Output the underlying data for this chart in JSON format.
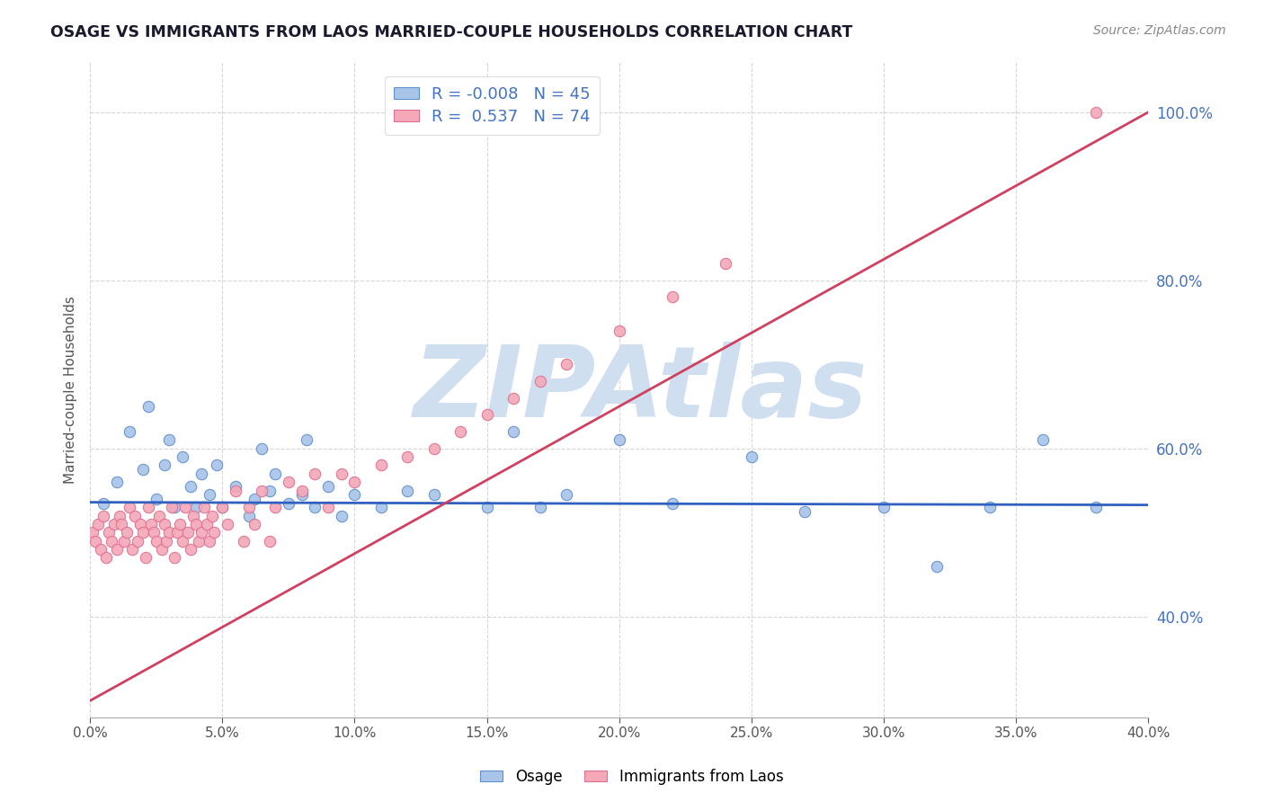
{
  "title": "OSAGE VS IMMIGRANTS FROM LAOS MARRIED-COUPLE HOUSEHOLDS CORRELATION CHART",
  "source": "Source: ZipAtlas.com",
  "ylabel": "Married-couple Households",
  "xlim": [
    0.0,
    0.4
  ],
  "ylim": [
    0.28,
    1.06
  ],
  "xticks": [
    0.0,
    0.05,
    0.1,
    0.15,
    0.2,
    0.25,
    0.3,
    0.35,
    0.4
  ],
  "yticks": [
    0.4,
    0.6,
    0.8,
    1.0
  ],
  "series1_name": "Osage",
  "series1_color": "#a8c4e8",
  "series1_edge": "#6090cc",
  "series1_R": -0.008,
  "series1_N": 45,
  "series2_name": "Immigrants from Laos",
  "series2_color": "#f4a8b8",
  "series2_edge": "#e07090",
  "series2_R": 0.537,
  "series2_N": 74,
  "series1_x": [
    0.005,
    0.01,
    0.015,
    0.02,
    0.022,
    0.025,
    0.028,
    0.03,
    0.032,
    0.035,
    0.038,
    0.04,
    0.042,
    0.045,
    0.048,
    0.05,
    0.055,
    0.06,
    0.062,
    0.065,
    0.068,
    0.07,
    0.075,
    0.08,
    0.082,
    0.085,
    0.09,
    0.095,
    0.1,
    0.11,
    0.12,
    0.13,
    0.15,
    0.16,
    0.17,
    0.18,
    0.2,
    0.22,
    0.25,
    0.27,
    0.3,
    0.32,
    0.34,
    0.36,
    0.38
  ],
  "series1_y": [
    0.535,
    0.56,
    0.62,
    0.575,
    0.65,
    0.54,
    0.58,
    0.61,
    0.53,
    0.59,
    0.555,
    0.53,
    0.57,
    0.545,
    0.58,
    0.53,
    0.555,
    0.52,
    0.54,
    0.6,
    0.55,
    0.57,
    0.535,
    0.545,
    0.61,
    0.53,
    0.555,
    0.52,
    0.545,
    0.53,
    0.55,
    0.545,
    0.53,
    0.62,
    0.53,
    0.545,
    0.61,
    0.535,
    0.59,
    0.525,
    0.53,
    0.46,
    0.53,
    0.61,
    0.53
  ],
  "series2_x": [
    0.001,
    0.002,
    0.003,
    0.004,
    0.005,
    0.006,
    0.007,
    0.008,
    0.009,
    0.01,
    0.011,
    0.012,
    0.013,
    0.014,
    0.015,
    0.016,
    0.017,
    0.018,
    0.019,
    0.02,
    0.021,
    0.022,
    0.023,
    0.024,
    0.025,
    0.026,
    0.027,
    0.028,
    0.029,
    0.03,
    0.031,
    0.032,
    0.033,
    0.034,
    0.035,
    0.036,
    0.037,
    0.038,
    0.039,
    0.04,
    0.041,
    0.042,
    0.043,
    0.044,
    0.045,
    0.046,
    0.047,
    0.05,
    0.052,
    0.055,
    0.058,
    0.06,
    0.062,
    0.065,
    0.068,
    0.07,
    0.075,
    0.08,
    0.085,
    0.09,
    0.095,
    0.1,
    0.11,
    0.12,
    0.13,
    0.14,
    0.15,
    0.16,
    0.17,
    0.18,
    0.2,
    0.22,
    0.24,
    0.38
  ],
  "series2_y": [
    0.5,
    0.49,
    0.51,
    0.48,
    0.52,
    0.47,
    0.5,
    0.49,
    0.51,
    0.48,
    0.52,
    0.51,
    0.49,
    0.5,
    0.53,
    0.48,
    0.52,
    0.49,
    0.51,
    0.5,
    0.47,
    0.53,
    0.51,
    0.5,
    0.49,
    0.52,
    0.48,
    0.51,
    0.49,
    0.5,
    0.53,
    0.47,
    0.5,
    0.51,
    0.49,
    0.53,
    0.5,
    0.48,
    0.52,
    0.51,
    0.49,
    0.5,
    0.53,
    0.51,
    0.49,
    0.52,
    0.5,
    0.53,
    0.51,
    0.55,
    0.49,
    0.53,
    0.51,
    0.55,
    0.49,
    0.53,
    0.56,
    0.55,
    0.57,
    0.53,
    0.57,
    0.56,
    0.58,
    0.59,
    0.6,
    0.62,
    0.64,
    0.66,
    0.68,
    0.7,
    0.74,
    0.78,
    0.82,
    1.0
  ],
  "trend1_slope": -0.008,
  "trend1_intercept": 0.536,
  "trend2_slope": 1.75,
  "trend2_intercept": 0.3,
  "watermark": "ZIPAtlas",
  "watermark_color": "#d0dff0",
  "background_color": "#ffffff",
  "grid_color": "#cccccc",
  "trend1_color": "#3060c0",
  "trend2_color": "#d04060",
  "title_color": "#1a1a2e",
  "source_color": "#888888",
  "tick_color": "#4472c4",
  "legend_R_color": "#4472c4"
}
